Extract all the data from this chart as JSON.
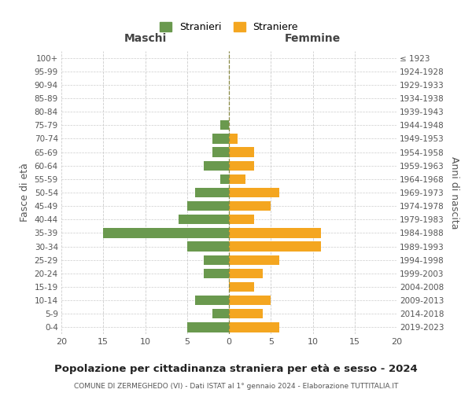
{
  "age_groups": [
    "100+",
    "95-99",
    "90-94",
    "85-89",
    "80-84",
    "75-79",
    "70-74",
    "65-69",
    "60-64",
    "55-59",
    "50-54",
    "45-49",
    "40-44",
    "35-39",
    "30-34",
    "25-29",
    "20-24",
    "15-19",
    "10-14",
    "5-9",
    "0-4"
  ],
  "birth_years": [
    "≤ 1923",
    "1924-1928",
    "1929-1933",
    "1934-1938",
    "1939-1943",
    "1944-1948",
    "1949-1953",
    "1954-1958",
    "1959-1963",
    "1964-1968",
    "1969-1973",
    "1974-1978",
    "1979-1983",
    "1984-1988",
    "1989-1993",
    "1994-1998",
    "1999-2003",
    "2004-2008",
    "2009-2013",
    "2014-2018",
    "2019-2023"
  ],
  "maschi": [
    0,
    0,
    0,
    0,
    0,
    1,
    2,
    2,
    3,
    1,
    4,
    5,
    6,
    15,
    5,
    3,
    3,
    0,
    4,
    2,
    5
  ],
  "femmine": [
    0,
    0,
    0,
    0,
    0,
    0,
    1,
    3,
    3,
    2,
    6,
    5,
    3,
    11,
    11,
    6,
    4,
    3,
    5,
    4,
    6
  ],
  "maschi_color": "#6a994e",
  "femmine_color": "#f4a620",
  "title": "Popolazione per cittadinanza straniera per età e sesso - 2024",
  "subtitle": "COMUNE DI ZERMEGHEDO (VI) - Dati ISTAT al 1° gennaio 2024 - Elaborazione TUTTITALIA.IT",
  "xlabel_left": "Maschi",
  "xlabel_right": "Femmine",
  "ylabel_left": "Fasce di età",
  "ylabel_right": "Anni di nascita",
  "legend_stranieri": "Stranieri",
  "legend_straniere": "Straniere",
  "xlim": 20,
  "background_color": "#ffffff",
  "grid_color": "#cccccc"
}
